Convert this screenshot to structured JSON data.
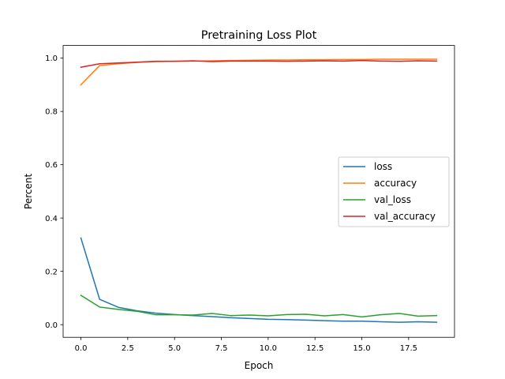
{
  "chart_data": {
    "type": "line",
    "title": "Pretraining Loss Plot",
    "xlabel": "Epoch",
    "ylabel": "Percent",
    "xlim": [
      -0.95,
      19.95
    ],
    "ylim": [
      -0.0475,
      1.0475
    ],
    "xticks": [
      0.0,
      2.5,
      5.0,
      7.5,
      10.0,
      12.5,
      15.0,
      17.5
    ],
    "xtick_labels": [
      "0.0",
      "2.5",
      "5.0",
      "7.5",
      "10.0",
      "12.5",
      "15.0",
      "17.5"
    ],
    "yticks": [
      0.0,
      0.2,
      0.4,
      0.6,
      0.8,
      1.0
    ],
    "ytick_labels": [
      "0.0",
      "0.2",
      "0.4",
      "0.6",
      "0.8",
      "1.0"
    ],
    "grid": false,
    "legend_position": "center-right",
    "x": [
      0,
      1,
      2,
      3,
      4,
      5,
      6,
      7,
      8,
      9,
      10,
      11,
      12,
      13,
      14,
      15,
      16,
      17,
      18,
      19
    ],
    "series": [
      {
        "name": "loss",
        "color": "#1f77b4",
        "values": [
          0.325,
          0.095,
          0.065,
          0.052,
          0.043,
          0.038,
          0.034,
          0.03,
          0.026,
          0.023,
          0.02,
          0.019,
          0.017,
          0.015,
          0.013,
          0.013,
          0.011,
          0.009,
          0.011,
          0.009
        ]
      },
      {
        "name": "accuracy",
        "color": "#ff7f0e",
        "values": [
          0.9,
          0.972,
          0.979,
          0.984,
          0.987,
          0.988,
          0.989,
          0.99,
          0.991,
          0.992,
          0.993,
          0.993,
          0.994,
          0.994,
          0.995,
          0.995,
          0.996,
          0.996,
          0.996,
          0.996
        ]
      },
      {
        "name": "val_loss",
        "color": "#2ca02c",
        "values": [
          0.11,
          0.066,
          0.057,
          0.05,
          0.037,
          0.037,
          0.036,
          0.042,
          0.034,
          0.036,
          0.033,
          0.038,
          0.039,
          0.033,
          0.038,
          0.029,
          0.037,
          0.042,
          0.032,
          0.034
        ]
      },
      {
        "name": "val_accuracy",
        "color": "#d62728",
        "values": [
          0.966,
          0.979,
          0.982,
          0.985,
          0.988,
          0.988,
          0.99,
          0.987,
          0.989,
          0.989,
          0.989,
          0.988,
          0.989,
          0.99,
          0.989,
          0.991,
          0.989,
          0.988,
          0.99,
          0.989
        ]
      }
    ]
  }
}
